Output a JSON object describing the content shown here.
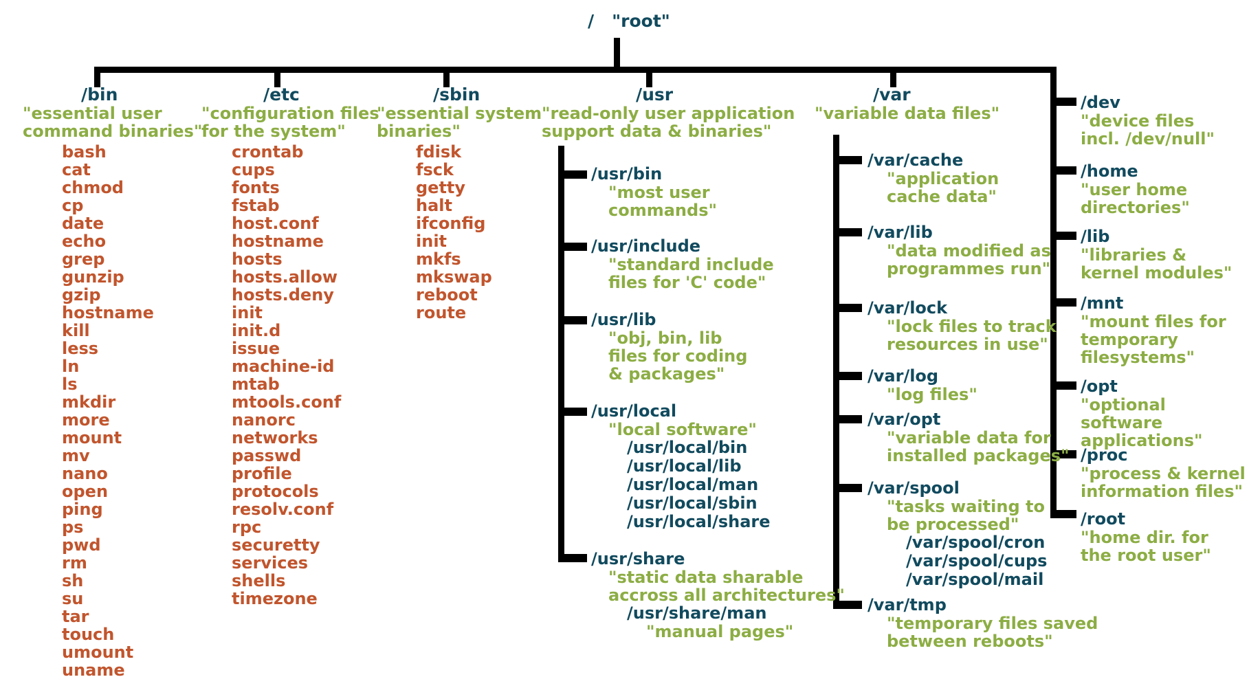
{
  "root": {
    "label": "/",
    "name": "\"root\""
  },
  "palette": {
    "dir_color": "#114a5e",
    "desc_color": "#8cad44",
    "file_color": "#c1552d",
    "line_color": "#000000"
  },
  "tree": {
    "bin": {
      "path": "/bin",
      "desc": "\"essential user\ncommand binaries\"",
      "files": [
        "bash",
        "cat",
        "chmod",
        "cp",
        "date",
        "echo",
        "grep",
        "gunzip",
        "gzip",
        "hostname",
        "kill",
        "less",
        "ln",
        "ls",
        "mkdir",
        "more",
        "mount",
        "mv",
        "nano",
        "open",
        "ping",
        "ps",
        "pwd",
        "rm",
        "sh",
        "su",
        "tar",
        "touch",
        "umount",
        "uname"
      ]
    },
    "etc": {
      "path": "/etc",
      "desc": "\"configuration files\nfor the system\"",
      "files": [
        "crontab",
        "cups",
        "fonts",
        "fstab",
        "host.conf",
        "hostname",
        "hosts",
        "hosts.allow",
        "hosts.deny",
        "init",
        "init.d",
        "issue",
        "machine-id",
        "mtab",
        "mtools.conf",
        "nanorc",
        "networks",
        "passwd",
        "profile",
        "protocols",
        "resolv.conf",
        "rpc",
        "securetty",
        "services",
        "shells",
        "timezone"
      ]
    },
    "sbin": {
      "path": "/sbin",
      "desc": "\"essential system\nbinaries\"",
      "files": [
        "fdisk",
        "fsck",
        "getty",
        "halt",
        "ifconfig",
        "init",
        "mkfs",
        "mkswap",
        "reboot",
        "route"
      ]
    },
    "usr": {
      "path": "/usr",
      "desc": "\"read-only user application\nsupport data & binaries\"",
      "children": [
        {
          "path": "/usr/bin",
          "desc": "\"most user\ncommands\""
        },
        {
          "path": "/usr/include",
          "desc": "\"standard include\nfiles for 'C' code\""
        },
        {
          "path": "/usr/lib",
          "desc": "\"obj, bin, lib\nfiles for coding\n& packages\""
        },
        {
          "path": "/usr/local",
          "desc": "\"local software\"",
          "subdirs": [
            "/usr/local/bin",
            "/usr/local/lib",
            "/usr/local/man",
            "/usr/local/sbin",
            "/usr/local/share"
          ]
        },
        {
          "path": "/usr/share",
          "desc": "\"static data sharable\naccross all architectures\"",
          "subdirs": [
            "/usr/share/man"
          ],
          "subdesc": "\"manual pages\""
        }
      ]
    },
    "var": {
      "path": "/var",
      "desc": "\"variable data files\"",
      "children": [
        {
          "path": "/var/cache",
          "desc": "\"application\ncache data\""
        },
        {
          "path": "/var/lib",
          "desc": "\"data modified as\nprogrammes run\""
        },
        {
          "path": "/var/lock",
          "desc": "\"lock files to track\nresources in use\""
        },
        {
          "path": "/var/log",
          "desc": "\"log files\""
        },
        {
          "path": "/var/opt",
          "desc": "\"variable data for\ninstalled packages\""
        },
        {
          "path": "/var/spool",
          "desc": "\"tasks waiting to\nbe processed\"",
          "subdirs": [
            "/var/spool/cron",
            "/var/spool/cups",
            "/var/spool/mail"
          ]
        },
        {
          "path": "/var/tmp",
          "desc": "\"temporary files saved\nbetween reboots\""
        }
      ]
    },
    "other_dirs": [
      {
        "path": "/dev",
        "desc": "\"device files\nincl. /dev/null\""
      },
      {
        "path": "/home",
        "desc": "\"user home\ndirectories\""
      },
      {
        "path": "/lib",
        "desc": "\"libraries &\nkernel modules\""
      },
      {
        "path": "/mnt",
        "desc": "\"mount files for\ntemporary\nfilesystems\""
      },
      {
        "path": "/opt",
        "desc": "\"optional software\napplications\""
      },
      {
        "path": "/proc",
        "desc": "\"process & kernel\ninformation files\""
      },
      {
        "path": "/root",
        "desc": "\"home dir. for\nthe root user\""
      }
    ]
  }
}
